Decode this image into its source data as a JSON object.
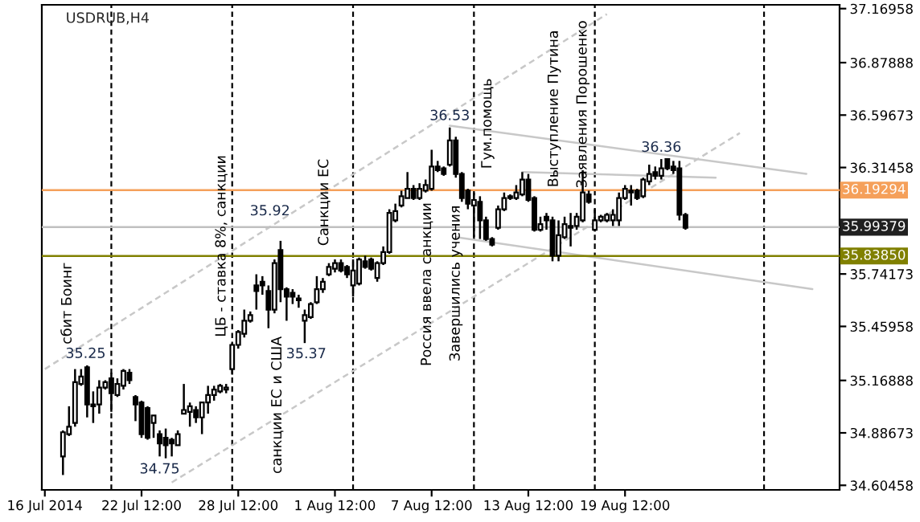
{
  "chart_data": {
    "type": "candlestick",
    "title": "USDRUB,H4",
    "categories": [
      "16 Jul 2014",
      null,
      null,
      null,
      null,
      null,
      null,
      null,
      null,
      null,
      null,
      null,
      null,
      null,
      null,
      null,
      "22 Jul 12:00",
      null,
      null,
      null,
      null,
      null,
      null,
      null,
      null,
      null,
      null,
      null,
      null,
      null,
      null,
      null,
      "28 Jul 12:00",
      null,
      null,
      null,
      null,
      null,
      null,
      null,
      null,
      null,
      null,
      null,
      null,
      null,
      null,
      null,
      "1 Aug 12:00",
      null,
      null,
      null,
      null,
      null,
      null,
      null,
      null,
      null,
      null,
      null,
      null,
      null,
      null,
      null,
      "7 Aug 12:00",
      null,
      null,
      null,
      null,
      null,
      null,
      null,
      null,
      null,
      null,
      null,
      null,
      null,
      null,
      null,
      "13 Aug 12:00",
      null,
      null,
      null,
      null,
      null,
      null,
      null,
      null,
      null,
      null,
      null,
      null,
      null,
      null,
      null,
      "19 Aug 12:00",
      null,
      null,
      null,
      null,
      null,
      null,
      null,
      null,
      null,
      null,
      null,
      null,
      null,
      null,
      null,
      null,
      null,
      null,
      null,
      null,
      null,
      null,
      null,
      null,
      null,
      null,
      null,
      null,
      null,
      null,
      null,
      null,
      null,
      null,
      null
    ],
    "ohlc": [
      null,
      null,
      null,
      [
        34.76,
        34.9,
        34.66,
        34.89
      ],
      [
        34.88,
        35.03,
        34.87,
        34.92
      ],
      [
        34.94,
        35.23,
        34.92,
        35.16
      ],
      [
        35.15,
        35.23,
        35.14,
        35.19
      ],
      [
        35.24,
        35.25,
        34.97,
        35.04
      ],
      [
        35.03,
        35.11,
        34.94,
        35.04
      ],
      [
        35.04,
        35.17,
        34.99,
        35.13
      ],
      [
        35.13,
        35.17,
        35.12,
        35.16
      ],
      [
        35.18,
        35.21,
        35.0,
        35.1
      ],
      [
        35.09,
        35.18,
        35.08,
        35.15
      ],
      [
        35.14,
        35.23,
        35.12,
        35.22
      ],
      [
        35.21,
        35.23,
        35.15,
        35.17
      ],
      [
        35.08,
        35.09,
        34.95,
        35.04
      ],
      [
        35.05,
        35.06,
        34.86,
        34.88
      ],
      [
        35.02,
        35.03,
        34.85,
        34.86
      ],
      [
        34.94,
        34.98,
        34.86,
        34.98
      ],
      [
        34.88,
        34.9,
        34.76,
        34.83
      ],
      [
        34.86,
        34.91,
        34.75,
        34.82
      ],
      [
        34.85,
        34.86,
        34.76,
        34.83
      ],
      [
        34.82,
        34.9,
        34.82,
        34.88
      ],
      [
        34.99,
        35.15,
        34.99,
        35.01
      ],
      [
        35.0,
        35.05,
        34.92,
        35.03
      ],
      [
        35.01,
        35.03,
        34.94,
        34.97
      ],
      [
        34.97,
        35.05,
        34.88,
        35.05
      ],
      [
        35.05,
        35.14,
        34.99,
        35.09
      ],
      [
        35.09,
        35.14,
        35.06,
        35.12
      ],
      [
        35.11,
        35.15,
        35.1,
        35.14
      ],
      [
        35.12,
        35.15,
        35.1,
        35.13
      ],
      [
        35.23,
        35.37,
        35.2,
        35.36
      ],
      [
        35.36,
        35.44,
        35.34,
        35.43
      ],
      [
        35.42,
        35.55,
        35.4,
        35.49
      ],
      [
        35.49,
        35.54,
        35.48,
        35.52
      ],
      [
        35.68,
        35.74,
        35.55,
        35.65
      ],
      [
        35.7,
        35.73,
        35.63,
        35.68
      ],
      [
        35.65,
        35.68,
        35.45,
        35.55
      ],
      [
        35.55,
        35.82,
        35.53,
        35.8
      ],
      [
        35.87,
        35.92,
        35.59,
        35.66
      ],
      [
        35.66,
        35.67,
        35.49,
        35.62
      ],
      [
        35.64,
        35.66,
        35.58,
        35.62
      ],
      [
        35.61,
        35.63,
        35.56,
        35.6
      ],
      [
        35.49,
        35.55,
        35.37,
        35.52
      ],
      [
        35.51,
        35.59,
        35.5,
        35.58
      ],
      [
        35.59,
        35.73,
        35.58,
        35.66
      ],
      [
        35.66,
        35.72,
        35.64,
        35.7
      ],
      [
        35.74,
        35.8,
        35.73,
        35.78
      ],
      [
        35.77,
        35.82,
        35.75,
        35.8
      ],
      [
        35.8,
        35.82,
        35.75,
        35.76
      ],
      [
        35.78,
        35.79,
        35.72,
        35.74
      ],
      [
        35.68,
        35.82,
        35.62,
        35.76
      ],
      [
        35.69,
        35.83,
        35.68,
        35.82
      ],
      [
        35.81,
        35.84,
        35.77,
        35.78
      ],
      [
        35.82,
        35.83,
        35.76,
        35.77
      ],
      [
        35.72,
        35.81,
        35.7,
        35.8
      ],
      [
        35.8,
        35.89,
        35.79,
        35.86
      ],
      [
        35.86,
        36.09,
        35.85,
        36.07
      ],
      [
        36.03,
        36.12,
        36.02,
        36.08
      ],
      [
        36.11,
        36.19,
        36.1,
        36.16
      ],
      [
        36.15,
        36.29,
        36.15,
        36.2
      ],
      [
        36.2,
        36.22,
        36.14,
        36.15
      ],
      [
        36.15,
        36.23,
        36.14,
        36.2
      ],
      [
        36.19,
        36.25,
        36.18,
        36.22
      ],
      [
        36.2,
        36.41,
        36.19,
        36.32
      ],
      [
        36.32,
        36.35,
        36.29,
        36.3
      ],
      [
        36.31,
        36.32,
        36.27,
        36.28
      ],
      [
        36.33,
        36.53,
        36.32,
        36.46
      ],
      [
        36.46,
        36.48,
        36.26,
        36.28
      ],
      [
        36.28,
        36.29,
        36.13,
        36.15
      ],
      [
        36.19,
        36.2,
        36.09,
        36.12
      ],
      [
        36.11,
        36.18,
        35.94,
        36.14
      ],
      [
        36.13,
        36.16,
        35.93,
        36.03
      ],
      [
        36.03,
        36.05,
        35.92,
        35.93
      ],
      [
        35.93,
        35.94,
        35.89,
        35.9
      ],
      [
        35.99,
        36.11,
        35.98,
        36.09
      ],
      [
        36.09,
        36.18,
        36.08,
        36.15
      ],
      [
        36.15,
        36.17,
        36.14,
        36.16
      ],
      [
        36.15,
        36.22,
        36.14,
        36.18
      ],
      [
        36.17,
        36.29,
        36.16,
        36.25
      ],
      [
        36.25,
        36.28,
        36.13,
        36.14
      ],
      [
        36.15,
        36.16,
        35.97,
        35.98
      ],
      [
        35.98,
        36.05,
        35.97,
        36.01
      ],
      [
        36.05,
        36.07,
        35.98,
        36.03
      ],
      [
        36.03,
        36.05,
        35.81,
        35.84
      ],
      [
        35.84,
        36.03,
        35.81,
        35.95
      ],
      [
        35.94,
        36.05,
        35.93,
        36.01
      ],
      [
        35.99,
        36.07,
        35.89,
        36.0
      ],
      [
        36.0,
        36.07,
        35.98,
        36.05
      ],
      [
        36.03,
        36.3,
        36.02,
        36.18
      ],
      [
        36.17,
        36.19,
        36.12,
        36.13
      ],
      [
        35.98,
        36.09,
        35.97,
        36.03
      ],
      [
        36.03,
        36.06,
        36.02,
        36.05
      ],
      [
        36.03,
        36.07,
        36.02,
        36.06
      ],
      [
        36.03,
        36.09,
        36.0,
        36.06
      ],
      [
        36.03,
        36.18,
        36.0,
        36.15
      ],
      [
        36.15,
        36.22,
        36.14,
        36.2
      ],
      [
        36.18,
        36.22,
        36.11,
        36.19
      ],
      [
        36.19,
        36.2,
        36.14,
        36.15
      ],
      [
        36.16,
        36.26,
        36.15,
        36.25
      ],
      [
        36.24,
        36.33,
        36.22,
        36.28
      ],
      [
        36.29,
        36.32,
        36.25,
        36.27
      ],
      [
        36.27,
        36.36,
        36.25,
        36.31
      ],
      [
        36.36,
        36.36,
        36.3,
        36.31
      ],
      [
        36.32,
        36.35,
        36.28,
        36.3
      ],
      [
        36.31,
        36.35,
        36.03,
        36.06
      ],
      [
        36.06,
        36.07,
        35.98,
        35.99
      ],
      null,
      null,
      null,
      null,
      null,
      null,
      null,
      null,
      null,
      null,
      null,
      null,
      null,
      null,
      null,
      null,
      null,
      null,
      null,
      null,
      null,
      null,
      null,
      null,
      null
    ],
    "series": [
      {
        "type": "line",
        "values": [
          35.23,
          null,
          null,
          null,
          null,
          null,
          null,
          null,
          null,
          null,
          null,
          null,
          null,
          null,
          null,
          null,
          null,
          null,
          null,
          null,
          null,
          null,
          null,
          null,
          null,
          null,
          null,
          null,
          null,
          null,
          null,
          null,
          null,
          null,
          null,
          null,
          null,
          null,
          null,
          null,
          null,
          null,
          null,
          null,
          null,
          null,
          null,
          null,
          null,
          null,
          null,
          null,
          null,
          null,
          null,
          null,
          null,
          null,
          null,
          null,
          null,
          null,
          null,
          null,
          null,
          null,
          null,
          null,
          null,
          null,
          null,
          null,
          null,
          null,
          null,
          null,
          null,
          null,
          null,
          null,
          null,
          null,
          null,
          null,
          null,
          null,
          null,
          null,
          null,
          null,
          null,
          null,
          null,
          37.14,
          null,
          null,
          null,
          null,
          null,
          null,
          null,
          null,
          null,
          null,
          null,
          null,
          null,
          null,
          null,
          null,
          null,
          null,
          null,
          null,
          null,
          null,
          null,
          null,
          null,
          null,
          null,
          null,
          null,
          null,
          null,
          null,
          null,
          null,
          null,
          null,
          null,
          null
        ],
        "color": "#c8c8c8",
        "line_style": "dashed"
      },
      {
        "type": "line",
        "values": [
          null,
          null,
          null,
          null,
          null,
          null,
          null,
          null,
          null,
          null,
          null,
          null,
          null,
          null,
          null,
          null,
          null,
          null,
          null,
          null,
          null,
          34.62,
          null,
          null,
          null,
          null,
          null,
          null,
          null,
          null,
          null,
          null,
          null,
          null,
          null,
          null,
          null,
          null,
          null,
          null,
          null,
          null,
          null,
          null,
          null,
          null,
          null,
          null,
          null,
          null,
          null,
          null,
          null,
          null,
          null,
          null,
          null,
          null,
          null,
          null,
          null,
          null,
          null,
          null,
          null,
          null,
          null,
          null,
          null,
          null,
          null,
          null,
          null,
          null,
          null,
          null,
          null,
          null,
          null,
          null,
          null,
          null,
          null,
          null,
          null,
          null,
          null,
          null,
          null,
          null,
          null,
          null,
          null,
          null,
          null,
          null,
          null,
          null,
          null,
          null,
          null,
          null,
          null,
          null,
          null,
          null,
          null,
          null,
          null,
          null,
          null,
          null,
          null,
          null,
          null,
          36.5,
          null,
          null,
          null,
          null,
          null,
          null,
          null,
          null,
          null,
          null,
          null,
          null,
          null,
          null,
          null,
          null
        ],
        "color": "#c8c8c8",
        "line_style": "dashed"
      },
      {
        "type": "line",
        "values": [
          null,
          null,
          null,
          null,
          null,
          null,
          null,
          null,
          null,
          null,
          null,
          null,
          null,
          null,
          null,
          null,
          null,
          null,
          null,
          null,
          null,
          null,
          null,
          null,
          null,
          null,
          null,
          null,
          null,
          null,
          null,
          null,
          null,
          null,
          null,
          null,
          null,
          null,
          null,
          null,
          null,
          null,
          null,
          null,
          null,
          null,
          null,
          null,
          null,
          null,
          null,
          null,
          null,
          null,
          null,
          null,
          null,
          null,
          null,
          null,
          null,
          null,
          null,
          null,
          null,
          null,
          null,
          36.54,
          null,
          null,
          null,
          null,
          null,
          null,
          null,
          null,
          null,
          null,
          null,
          null,
          null,
          null,
          null,
          null,
          null,
          null,
          null,
          null,
          null,
          null,
          null,
          null,
          null,
          null,
          null,
          null,
          null,
          null,
          null,
          null,
          null,
          null,
          null,
          null,
          null,
          null,
          null,
          null,
          null,
          null,
          null,
          null,
          null,
          null,
          null,
          null,
          null,
          null,
          null,
          null,
          null,
          null,
          null,
          null,
          null,
          null,
          36.28,
          null,
          null,
          null,
          null,
          null
        ],
        "color": "#c8c8c8",
        "line_style": "solid"
      },
      {
        "type": "line",
        "values": [
          null,
          null,
          null,
          null,
          null,
          null,
          null,
          null,
          null,
          null,
          null,
          null,
          null,
          null,
          null,
          null,
          null,
          null,
          null,
          null,
          null,
          null,
          null,
          null,
          null,
          null,
          null,
          null,
          null,
          null,
          null,
          null,
          null,
          null,
          null,
          null,
          null,
          null,
          null,
          null,
          null,
          null,
          null,
          null,
          null,
          null,
          null,
          null,
          null,
          null,
          null,
          null,
          null,
          null,
          null,
          null,
          null,
          null,
          null,
          null,
          null,
          null,
          null,
          null,
          null,
          null,
          null,
          null,
          35.94,
          null,
          null,
          null,
          null,
          null,
          null,
          null,
          null,
          null,
          null,
          null,
          null,
          null,
          null,
          null,
          null,
          null,
          null,
          null,
          null,
          null,
          null,
          null,
          null,
          null,
          null,
          null,
          null,
          null,
          null,
          null,
          null,
          null,
          null,
          null,
          null,
          null,
          null,
          null,
          null,
          null,
          null,
          null,
          null,
          null,
          null,
          null,
          null,
          null,
          null,
          null,
          null,
          null,
          null,
          null,
          null,
          null,
          null,
          35.66,
          null,
          null,
          null,
          null
        ],
        "color": "#c8c8c8",
        "line_style": "solid"
      },
      {
        "type": "line",
        "values": [
          null,
          null,
          null,
          null,
          null,
          null,
          null,
          null,
          null,
          null,
          null,
          null,
          null,
          null,
          null,
          null,
          null,
          null,
          null,
          null,
          null,
          null,
          null,
          null,
          null,
          null,
          null,
          null,
          null,
          null,
          null,
          null,
          null,
          null,
          null,
          null,
          null,
          null,
          null,
          null,
          null,
          null,
          null,
          null,
          null,
          null,
          null,
          null,
          null,
          null,
          null,
          null,
          null,
          null,
          null,
          null,
          null,
          null,
          null,
          null,
          null,
          null,
          null,
          null,
          null,
          null,
          null,
          null,
          null,
          null,
          null,
          null,
          null,
          null,
          null,
          null,
          null,
          null,
          null,
          36.29,
          null,
          null,
          null,
          null,
          null,
          null,
          null,
          null,
          null,
          null,
          null,
          null,
          null,
          null,
          null,
          null,
          null,
          null,
          null,
          null,
          null,
          null,
          null,
          null,
          null,
          null,
          null,
          null,
          null,
          null,
          null,
          36.26,
          null,
          null,
          null,
          null,
          null,
          null,
          null,
          null,
          null,
          null,
          null,
          null,
          null,
          null,
          null,
          null,
          null,
          null,
          null,
          null
        ],
        "color": "#c8c8c8",
        "line_style": "solid"
      }
    ],
    "ylim": [
      34.58,
      37.19
    ],
    "yticks": [
      34.60458,
      34.88673,
      35.16888,
      35.45958,
      35.74173,
      36.31458,
      36.59673,
      36.87888,
      37.16958
    ],
    "ref_lines": [
      {
        "axis": "y",
        "value": 36.19294,
        "label": "36.19294",
        "color": "#f5a05a"
      },
      {
        "axis": "y",
        "value": 35.99379,
        "label": "35.99379",
        "color": "#c0c0c0"
      },
      {
        "axis": "y",
        "value": 35.8385,
        "label": "35.83850",
        "color": "#808000"
      }
    ],
    "annotations": [
      "сбит Боинг",
      {
        "text": "35.25",
        "y": 35.25
      },
      "ЦБ - ставка 8%, санкции",
      "35.92",
      "санкции ЕС и США",
      {
        "text": "35.37",
        "y": 35.37
      },
      {
        "text": "34.75",
        "y": 34.75
      },
      "Санкции ЕС",
      "Россия ввела санкции",
      "Завершились учения",
      {
        "text": "36.53",
        "y": 36.53
      },
      "Гум.помощь",
      {
        "text": "Выступление Путина",
        "y": 36.16
      },
      {
        "text": "Заявления Порошенко",
        "y": 36.3
      },
      {
        "text": "36.36",
        "y": 36.36
      }
    ],
    "grid": false
  }
}
